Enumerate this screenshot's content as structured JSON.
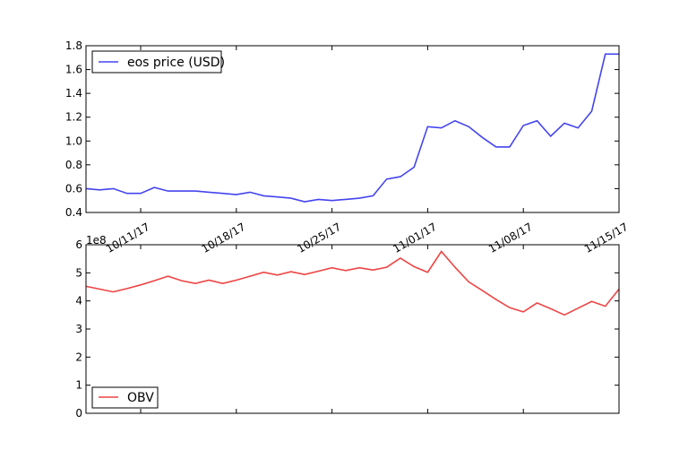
{
  "chart_data": [
    {
      "type": "line",
      "x": [
        "10/07/17",
        "10/08/17",
        "10/09/17",
        "10/10/17",
        "10/11/17",
        "10/12/17",
        "10/13/17",
        "10/14/17",
        "10/15/17",
        "10/16/17",
        "10/17/17",
        "10/18/17",
        "10/19/17",
        "10/20/17",
        "10/21/17",
        "10/22/17",
        "10/23/17",
        "10/24/17",
        "10/25/17",
        "10/26/17",
        "10/27/17",
        "10/28/17",
        "10/29/17",
        "10/30/17",
        "10/31/17",
        "11/01/17",
        "11/02/17",
        "11/03/17",
        "11/04/17",
        "11/05/17",
        "11/06/17",
        "11/07/17",
        "11/08/17",
        "11/09/17",
        "11/10/17",
        "11/11/17",
        "11/12/17",
        "11/13/17",
        "11/14/17",
        "11/15/17"
      ],
      "series": [
        {
          "name": "eos price (USD)",
          "color": "#4444ee",
          "values": [
            0.6,
            0.59,
            0.6,
            0.56,
            0.56,
            0.61,
            0.58,
            0.58,
            0.58,
            0.57,
            0.56,
            0.55,
            0.57,
            0.54,
            0.53,
            0.52,
            0.49,
            0.51,
            0.5,
            0.51,
            0.52,
            0.54,
            0.68,
            0.7,
            0.78,
            1.12,
            1.11,
            1.17,
            1.12,
            1.03,
            0.95,
            0.95,
            1.13,
            1.17,
            1.04,
            1.15,
            1.11,
            1.25,
            1.73,
            1.73
          ]
        }
      ],
      "ylim": [
        0.4,
        1.8
      ],
      "yticks": [
        "0.4",
        "0.6",
        "0.8",
        "1.0",
        "1.2",
        "1.4",
        "1.6",
        "1.8"
      ],
      "xtick_labels": [
        "10/11/17",
        "10/18/17",
        "10/25/17",
        "11/01/17",
        "11/08/17",
        "11/15/17"
      ],
      "legend": {
        "position": "top-left"
      }
    },
    {
      "type": "line",
      "x": [
        "10/07/17",
        "10/08/17",
        "10/09/17",
        "10/10/17",
        "10/11/17",
        "10/12/17",
        "10/13/17",
        "10/14/17",
        "10/15/17",
        "10/16/17",
        "10/17/17",
        "10/18/17",
        "10/19/17",
        "10/20/17",
        "10/21/17",
        "10/22/17",
        "10/23/17",
        "10/24/17",
        "10/25/17",
        "10/26/17",
        "10/27/17",
        "10/28/17",
        "10/29/17",
        "10/30/17",
        "10/31/17",
        "11/01/17",
        "11/02/17",
        "11/03/17",
        "11/04/17",
        "11/05/17",
        "11/06/17",
        "11/07/17",
        "11/08/17",
        "11/09/17",
        "11/10/17",
        "11/11/17",
        "11/12/17",
        "11/13/17",
        "11/14/17",
        "11/15/17"
      ],
      "series": [
        {
          "name": "OBV",
          "color": "#ee4444",
          "values": [
            4.52,
            4.42,
            4.32,
            4.44,
            4.57,
            4.72,
            4.88,
            4.72,
            4.62,
            4.74,
            4.62,
            4.74,
            4.88,
            5.02,
            4.92,
            5.04,
            4.94,
            5.06,
            5.18,
            5.08,
            5.18,
            5.1,
            5.2,
            5.52,
            5.22,
            5.02,
            5.76,
            5.2,
            4.68,
            4.37,
            4.05,
            3.76,
            3.61,
            3.93,
            3.72,
            3.5,
            3.74,
            3.98,
            3.81,
            4.42
          ]
        }
      ],
      "ylim": [
        0,
        6
      ],
      "yticks": [
        "0",
        "1",
        "2",
        "3",
        "4",
        "5",
        "6"
      ],
      "y_multiplier": "1e8",
      "legend": {
        "position": "bottom-left"
      }
    }
  ]
}
